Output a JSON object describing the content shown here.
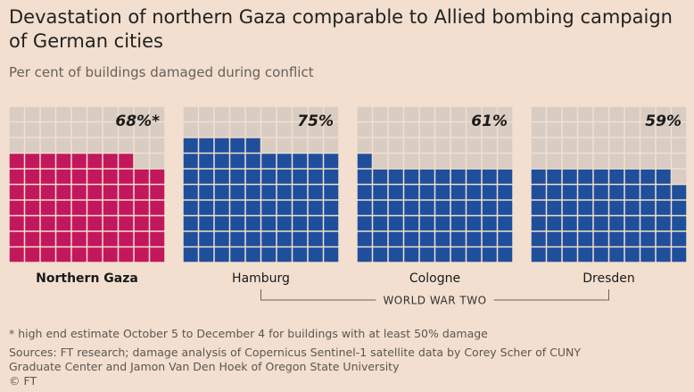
{
  "title": "Devastation of northern Gaza comparable to Allied bombing campaign of German cities",
  "subtitle": "Per cent of buildings damaged during conflict",
  "chart_data": {
    "type": "waffle",
    "grid": {
      "cols": 10,
      "rows": 10
    },
    "unit": "%",
    "panels": [
      {
        "name": "Northern Gaza",
        "value": 68,
        "label": "68%*",
        "color": "#c2185b",
        "bold": true,
        "group": ""
      },
      {
        "name": "Hamburg",
        "value": 75,
        "label": "75%",
        "color": "#1f4f9b",
        "bold": false,
        "group": "WORLD WAR TWO"
      },
      {
        "name": "Cologne",
        "value": 61,
        "label": "61%",
        "color": "#1f4f9b",
        "bold": false,
        "group": "WORLD WAR TWO"
      },
      {
        "name": "Dresden",
        "value": 59,
        "label": "59%",
        "color": "#1f4f9b",
        "bold": false,
        "group": "WORLD WAR TWO"
      }
    ],
    "empty_color": "#d8ccc3",
    "group_label": "WORLD WAR TWO"
  },
  "footnote": "* high end estimate October 5 to December 4 for buildings with at least 50% damage",
  "sources": "Sources: FT research; damage analysis of Copernicus Sentinel-1 satellite data by Corey Scher of CUNY Graduate Center and Jamon Van Den Hoek of Oregon State University",
  "copyright": "© FT"
}
